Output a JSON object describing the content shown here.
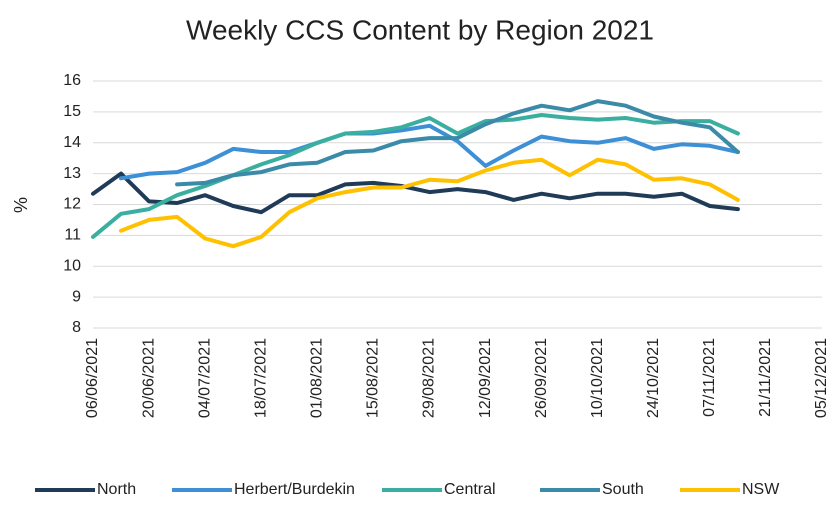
{
  "chart_data": {
    "type": "line",
    "title": "Weekly CCS Content by Region 2021",
    "y_label": "%",
    "categories": [
      "06/06/2021",
      null,
      "20/06/2021",
      null,
      "04/07/2021",
      null,
      "18/07/2021",
      null,
      "01/08/2021",
      null,
      "15/08/2021",
      null,
      "29/08/2021",
      null,
      "12/09/2021",
      null,
      "26/09/2021",
      null,
      "10/10/2021",
      null,
      "24/10/2021",
      null,
      "07/11/2021",
      null,
      "21/11/2021",
      null,
      "05/12/2021"
    ],
    "series": [
      {
        "name": "North",
        "color": "#1f3b57",
        "values": [
          12.35,
          13.0,
          12.1,
          12.05,
          12.3,
          11.95,
          11.75,
          12.3,
          12.3,
          12.65,
          12.7,
          12.6,
          12.4,
          12.5,
          12.4,
          12.15,
          12.35,
          12.2,
          12.35,
          12.35,
          12.25,
          12.35,
          11.95,
          11.85,
          null,
          null,
          null
        ]
      },
      {
        "name": "Herbert/Burdekin",
        "color": "#3d8fd6",
        "values": [
          null,
          12.85,
          13.0,
          13.05,
          13.35,
          13.8,
          13.7,
          13.7,
          14.0,
          14.3,
          14.3,
          14.4,
          14.55,
          14.05,
          13.25,
          13.75,
          14.2,
          14.05,
          14.0,
          14.15,
          13.8,
          13.95,
          13.9,
          13.7,
          null,
          null,
          null
        ]
      },
      {
        "name": "Central",
        "color": "#3aafa0",
        "values": [
          10.95,
          11.7,
          11.85,
          12.3,
          12.6,
          12.95,
          13.3,
          13.6,
          14.0,
          14.3,
          14.35,
          14.5,
          14.8,
          14.3,
          14.7,
          14.75,
          14.9,
          14.8,
          14.75,
          14.8,
          14.65,
          14.7,
          14.7,
          14.3,
          null,
          null,
          null
        ]
      },
      {
        "name": "South",
        "color": "#3a8aa8",
        "values": [
          null,
          null,
          null,
          12.65,
          12.7,
          12.95,
          13.05,
          13.3,
          13.35,
          13.7,
          13.75,
          14.05,
          14.15,
          14.15,
          14.6,
          14.95,
          15.2,
          15.05,
          15.35,
          15.2,
          14.85,
          14.65,
          14.5,
          13.7,
          null,
          null,
          null
        ]
      },
      {
        "name": "NSW",
        "color": "#ffc000",
        "values": [
          null,
          11.15,
          11.5,
          11.6,
          10.9,
          10.65,
          10.95,
          11.75,
          12.2,
          12.4,
          12.55,
          12.55,
          12.8,
          12.75,
          13.1,
          13.35,
          13.45,
          12.95,
          13.45,
          13.3,
          12.8,
          12.85,
          12.65,
          12.15,
          null,
          null,
          null
        ]
      }
    ],
    "ylim": [
      8,
      16
    ],
    "yticks": [
      8,
      9,
      10,
      11,
      12,
      13,
      14,
      15,
      16
    ],
    "grid": true,
    "legend": "bottom"
  }
}
